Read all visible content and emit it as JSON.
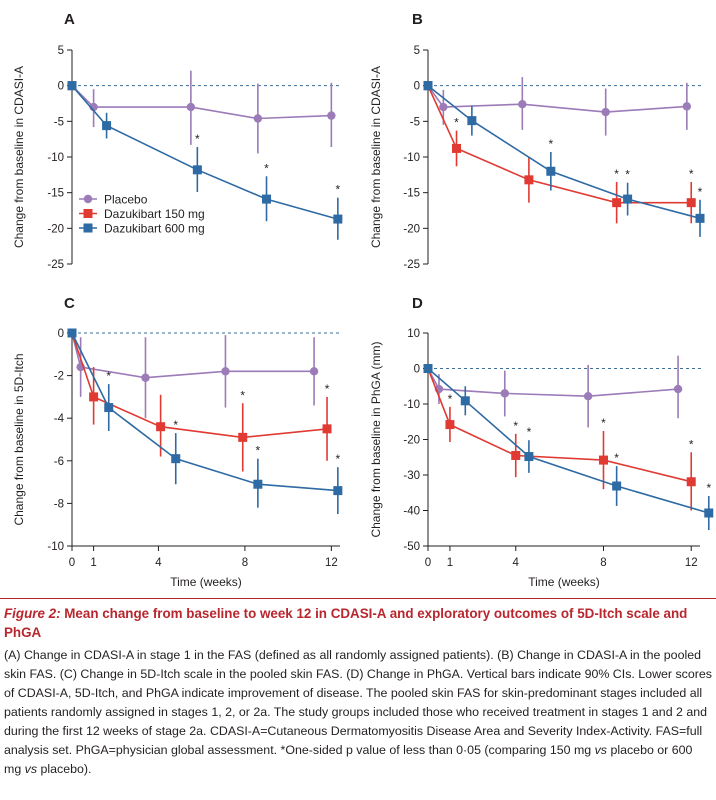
{
  "caption": {
    "figure_label": "Figure 2:",
    "title": "Mean change from baseline to week 12 in CDASI-A and exploratory outcomes of 5D-Itch scale and PhGA",
    "body_before_vs1": "(A) Change in CDASI-A in stage 1 in the FAS (defined as all randomly assigned patients). (B) Change in CDASI-A in the pooled skin FAS. (C) Change in 5D-Itch scale in the pooled skin FAS. (D) Change in PhGA. Vertical bars indicate 90% CIs. Lower scores of CDASI-A, 5D-Itch, and PhGA indicate improvement of disease. The pooled skin FAS for skin-predominant stages included all patients randomly assigned in stages 1, 2, or 2a. The study groups included those who received treatment in stages 1 and 2 and during the first 12 weeks of stage 2a. CDASI-A=Cutaneous Dermatomyositis Disease Area and Severity Index-Activity. FAS=full analysis set. PhGA=physician global assessment. *One-sided p value of less than 0·05 (comparing 150 mg ",
    "vs1": "vs",
    "body_middle": " placebo or 600 mg ",
    "vs2": "vs",
    "body_end": " placebo)."
  },
  "colors": {
    "placebo": "#9b7bb8",
    "d150": "#e03a33",
    "d600": "#2e6aa3",
    "baseline": "#3a6f9a",
    "axis": "#231f20"
  },
  "chart_data": [
    {
      "panel": "A",
      "type": "line",
      "ylabel": "Change from baseline in CDASI-A",
      "xlabel": "",
      "ylim": [
        -25,
        5
      ],
      "yticks": [
        5,
        0,
        -5,
        -10,
        -15,
        -20,
        -25
      ],
      "xlim": [
        0,
        12.4
      ],
      "xticks": [],
      "legend": {
        "position": "bottom-left",
        "entries": [
          "Placebo",
          "Dazukibart 150 mg",
          "Dazukibart 600 mg"
        ]
      },
      "series": [
        {
          "name": "Placebo",
          "key": "placebo",
          "marker": "circle",
          "points": [
            {
              "x": 0,
              "y": 0
            },
            {
              "x": 1.0,
              "y": -3.0,
              "lo": -5.8,
              "hi": -0.5
            },
            {
              "x": 5.5,
              "y": -3.0,
              "lo": -8.3,
              "hi": 2.1
            },
            {
              "x": 8.6,
              "y": -4.6,
              "lo": -9.5,
              "hi": 0.3
            },
            {
              "x": 12.0,
              "y": -4.2,
              "lo": -8.6,
              "hi": 0.4
            }
          ]
        },
        {
          "name": "Dazukibart 600 mg",
          "key": "d600",
          "marker": "square",
          "points": [
            {
              "x": 0,
              "y": 0
            },
            {
              "x": 1.6,
              "y": -5.6,
              "lo": -7.4,
              "hi": -3.8
            },
            {
              "x": 5.8,
              "y": -11.8,
              "lo": -14.9,
              "hi": -8.6,
              "sig": true
            },
            {
              "x": 9.0,
              "y": -15.9,
              "lo": -19.0,
              "hi": -12.7,
              "sig": true
            },
            {
              "x": 12.3,
              "y": -18.7,
              "lo": -21.6,
              "hi": -15.7,
              "sig": true
            }
          ]
        }
      ]
    },
    {
      "panel": "B",
      "type": "line",
      "ylabel": "Change from baseline in CDASI-A",
      "xlabel": "",
      "ylim": [
        -25,
        5
      ],
      "yticks": [
        5,
        0,
        -5,
        -10,
        -15,
        -20,
        -25
      ],
      "xlim": [
        0,
        12.4
      ],
      "xticks": [],
      "series": [
        {
          "name": "Placebo",
          "key": "placebo",
          "marker": "circle",
          "points": [
            {
              "x": 0,
              "y": 0
            },
            {
              "x": 0.7,
              "y": -3.0,
              "lo": -5.5,
              "hi": -0.6
            },
            {
              "x": 4.3,
              "y": -2.6,
              "lo": -6.2,
              "hi": 1.2
            },
            {
              "x": 8.1,
              "y": -3.7,
              "lo": -7.0,
              "hi": -0.4
            },
            {
              "x": 11.8,
              "y": -2.9,
              "lo": -6.2,
              "hi": 0.4
            }
          ]
        },
        {
          "name": "Dazukibart 150 mg",
          "key": "d150",
          "marker": "square",
          "points": [
            {
              "x": 0,
              "y": 0
            },
            {
              "x": 1.3,
              "y": -8.8,
              "lo": -11.3,
              "hi": -6.3,
              "sig": true
            },
            {
              "x": 4.6,
              "y": -13.2,
              "lo": -16.4,
              "hi": -10.0
            },
            {
              "x": 8.6,
              "y": -16.4,
              "lo": -19.3,
              "hi": -13.5,
              "sig": true
            },
            {
              "x": 12.0,
              "y": -16.4,
              "lo": -19.3,
              "hi": -13.5,
              "sig": true
            }
          ]
        },
        {
          "name": "Dazukibart 600 mg",
          "key": "d600",
          "marker": "square",
          "points": [
            {
              "x": 0,
              "y": 0
            },
            {
              "x": 2.0,
              "y": -4.9,
              "lo": -7.0,
              "hi": -2.8
            },
            {
              "x": 5.6,
              "y": -12.0,
              "lo": -14.7,
              "hi": -9.3,
              "sig": true
            },
            {
              "x": 9.1,
              "y": -15.9,
              "lo": -18.2,
              "hi": -13.6,
              "sig": true
            },
            {
              "x": 12.4,
              "y": -18.6,
              "lo": -21.2,
              "hi": -16.0,
              "sig": true
            }
          ]
        }
      ]
    },
    {
      "panel": "C",
      "type": "line",
      "ylabel": "Change from baseline in 5D-Itch",
      "xlabel": "Time (weeks)",
      "ylim": [
        -10,
        0
      ],
      "yticks": [
        0,
        -2,
        -4,
        -6,
        -8,
        -10
      ],
      "xlim": [
        0,
        12.4
      ],
      "xticks": [
        0,
        1,
        4,
        8,
        12
      ],
      "series": [
        {
          "name": "Placebo",
          "key": "placebo",
          "marker": "circle",
          "points": [
            {
              "x": 0,
              "y": 0
            },
            {
              "x": 0.4,
              "y": -1.6,
              "lo": -3.0,
              "hi": -0.2
            },
            {
              "x": 3.4,
              "y": -2.1,
              "lo": -4.0,
              "hi": -0.2
            },
            {
              "x": 7.1,
              "y": -1.8,
              "lo": -3.5,
              "hi": -0.1
            },
            {
              "x": 11.2,
              "y": -1.8,
              "lo": -3.4,
              "hi": -0.2
            }
          ]
        },
        {
          "name": "Dazukibart 150 mg",
          "key": "d150",
          "marker": "square",
          "points": [
            {
              "x": 0,
              "y": 0
            },
            {
              "x": 1.0,
              "y": -3.0,
              "lo": -4.3,
              "hi": -1.6
            },
            {
              "x": 4.1,
              "y": -4.4,
              "lo": -5.8,
              "hi": -2.9
            },
            {
              "x": 7.9,
              "y": -4.9,
              "lo": -6.5,
              "hi": -3.3,
              "sig": true
            },
            {
              "x": 11.8,
              "y": -4.5,
              "lo": -6.0,
              "hi": -3.0,
              "sig": true
            }
          ]
        },
        {
          "name": "Dazukibart 600 mg",
          "key": "d600",
          "marker": "square",
          "points": [
            {
              "x": 0,
              "y": 0
            },
            {
              "x": 1.7,
              "y": -3.5,
              "lo": -4.6,
              "hi": -2.4,
              "sig": true
            },
            {
              "x": 4.8,
              "y": -5.9,
              "lo": -7.1,
              "hi": -4.7,
              "sig": true
            },
            {
              "x": 8.6,
              "y": -7.1,
              "lo": -8.2,
              "hi": -5.9,
              "sig": true
            },
            {
              "x": 12.3,
              "y": -7.4,
              "lo": -8.5,
              "hi": -6.3,
              "sig": true
            }
          ]
        }
      ]
    },
    {
      "panel": "D",
      "type": "line",
      "ylabel": "Change from baseline in PhGA (mm)",
      "xlabel": "Time (weeks)",
      "ylim": [
        -50,
        10
      ],
      "yticks": [
        10,
        0,
        -10,
        -20,
        -30,
        -40,
        -50
      ],
      "xlim": [
        0,
        12.4
      ],
      "xticks": [
        0,
        1,
        4,
        8,
        12
      ],
      "series": [
        {
          "name": "Placebo",
          "key": "placebo",
          "marker": "circle",
          "points": [
            {
              "x": 0,
              "y": 0
            },
            {
              "x": 0.5,
              "y": -5.8,
              "lo": -10.0,
              "hi": -1.6
            },
            {
              "x": 3.5,
              "y": -7.0,
              "lo": -13.5,
              "hi": -0.6
            },
            {
              "x": 7.3,
              "y": -7.8,
              "lo": -16.6,
              "hi": 1.0
            },
            {
              "x": 11.4,
              "y": -5.8,
              "lo": -14.0,
              "hi": 3.6
            }
          ]
        },
        {
          "name": "Dazukibart 150 mg",
          "key": "d150",
          "marker": "square",
          "points": [
            {
              "x": 0,
              "y": 0
            },
            {
              "x": 1.0,
              "y": -15.8,
              "lo": -20.7,
              "hi": -10.8,
              "sig": true
            },
            {
              "x": 4.0,
              "y": -24.5,
              "lo": -30.6,
              "hi": -18.4,
              "sig": true
            },
            {
              "x": 8.0,
              "y": -25.8,
              "lo": -34.0,
              "hi": -17.6,
              "sig": true
            },
            {
              "x": 12.0,
              "y": -31.9,
              "lo": -40.0,
              "hi": -23.6,
              "sig": true
            }
          ]
        },
        {
          "name": "Dazukibart 600 mg",
          "key": "d600",
          "marker": "square",
          "points": [
            {
              "x": 0,
              "y": 0
            },
            {
              "x": 1.7,
              "y": -9.1,
              "lo": -13.2,
              "hi": -5.0
            },
            {
              "x": 4.6,
              "y": -24.8,
              "lo": -29.4,
              "hi": -20.2,
              "sig": true
            },
            {
              "x": 8.6,
              "y": -33.1,
              "lo": -38.7,
              "hi": -27.5,
              "sig": true
            },
            {
              "x": 12.8,
              "y": -40.7,
              "lo": -45.5,
              "hi": -35.9,
              "sig": true
            }
          ]
        }
      ]
    }
  ]
}
